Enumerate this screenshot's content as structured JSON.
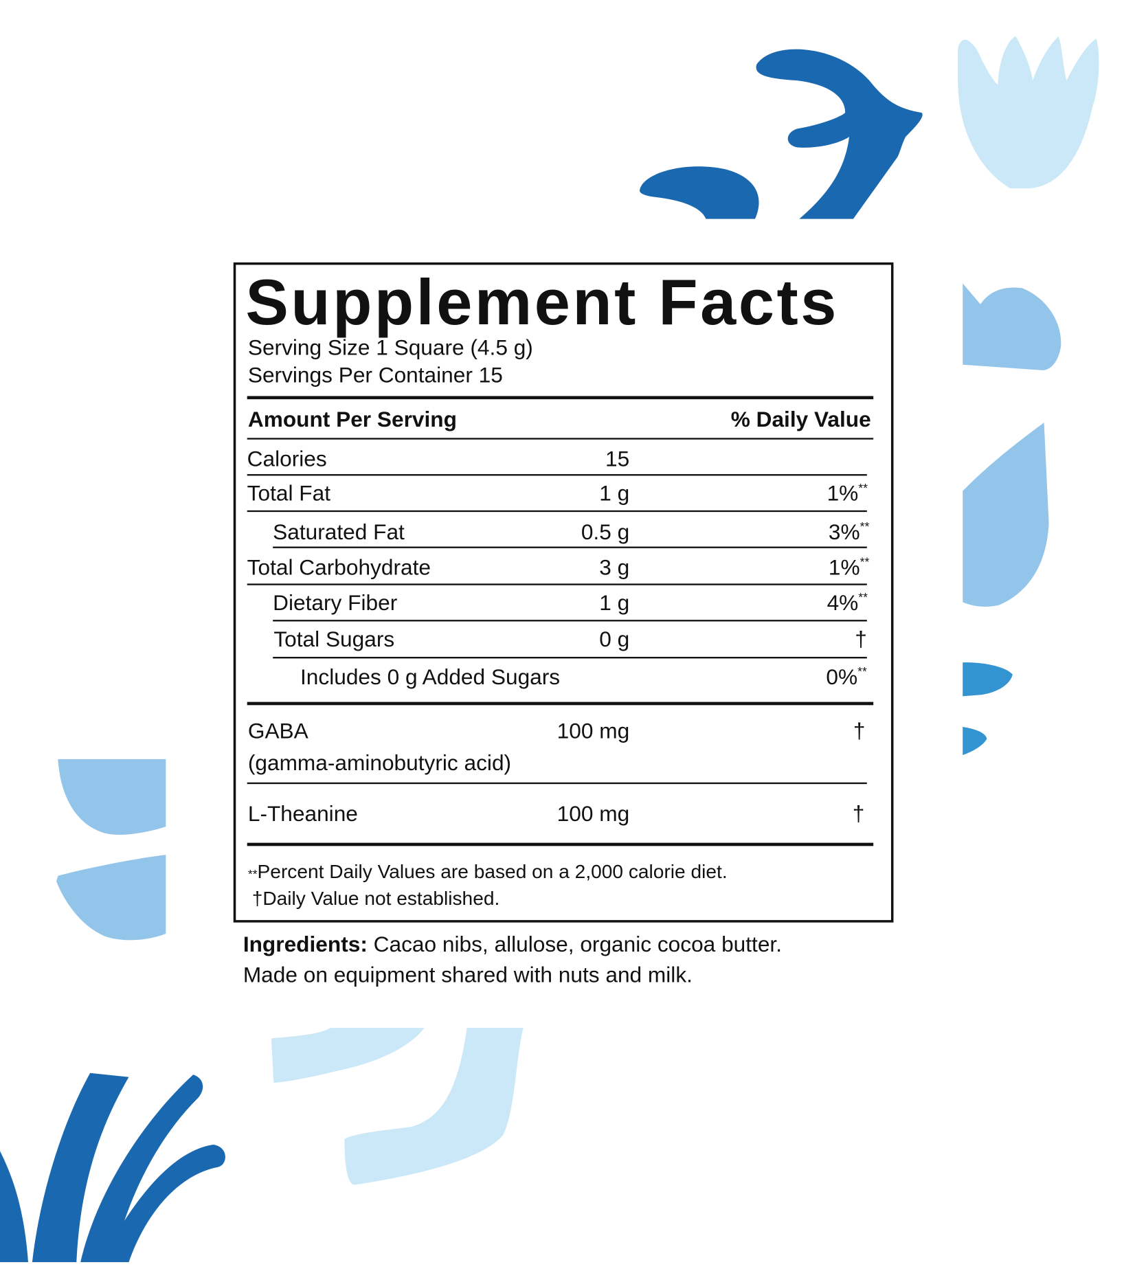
{
  "title": "Supplement Facts",
  "serving_size": "Serving Size 1 Square (4.5 g)",
  "servings_per_container": "Servings Per Container 15",
  "header": {
    "amount": "Amount Per Serving",
    "dv": "% Daily Value"
  },
  "rows": [
    {
      "name": "Calories",
      "amount": "15",
      "dv": "",
      "mark": ""
    },
    {
      "name": "Total Fat",
      "amount": "1 g",
      "dv": "1%",
      "mark": "**"
    },
    {
      "name": "Saturated Fat",
      "amount": "0.5 g",
      "dv": "3%",
      "mark": "**"
    },
    {
      "name": "Total Carbohydrate",
      "amount": "3 g",
      "dv": "1%",
      "mark": "**"
    },
    {
      "name": "Dietary Fiber",
      "amount": "1 g",
      "dv": "4%",
      "mark": "**"
    },
    {
      "name": "Total Sugars",
      "amount": "0 g",
      "dv": "",
      "mark": "†"
    },
    {
      "name": "Includes 0 g Added Sugars",
      "amount": "",
      "dv": "0%",
      "mark": "**"
    }
  ],
  "actives": [
    {
      "name": "GABA",
      "subname": "(gamma-aminobutyric acid)",
      "amount": "100 mg",
      "mark": "†"
    },
    {
      "name": "L-Theanine",
      "amount": "100 mg",
      "mark": "†"
    }
  ],
  "footnotes": [
    {
      "symbol": "**",
      "text": "Percent Daily Values are based on a 2,000 calorie diet."
    },
    {
      "symbol": "†",
      "text": "Daily Value not established."
    }
  ],
  "ingredients": {
    "label": "Ingredients:",
    "text": " Cacao nibs, allulose, organic cocoa butter.",
    "line2": "Made on equipment shared with nuts and milk."
  },
  "colors": {
    "dark_blue": "#1a69b0",
    "light_blue": "#cae8f8",
    "mid_blue": "#93c5ea",
    "bright_blue": "#3494d2"
  }
}
